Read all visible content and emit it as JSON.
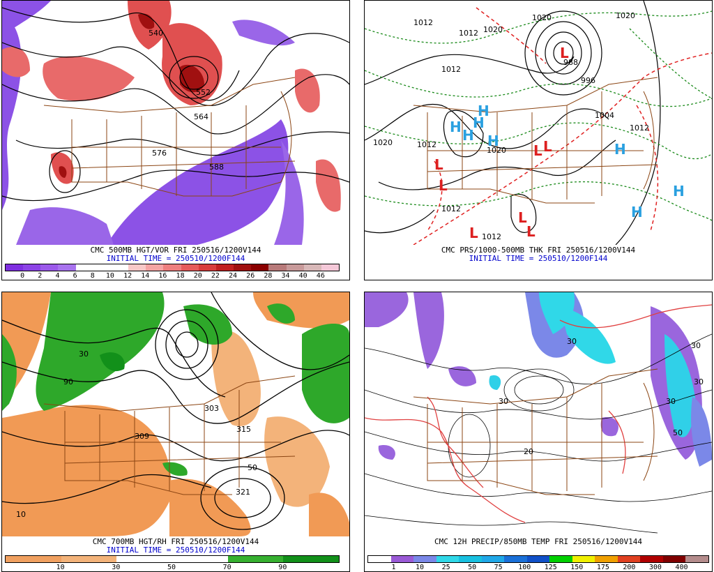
{
  "panels": {
    "p1": {
      "caption": "CMC 500MB HGT/VOR FRI 250516/1200V144",
      "init": "INITIAL TIME = 250510/1200F144",
      "legend_colors": [
        "#7f2fe0",
        "#8c43e6",
        "#9b59ea",
        "#a873ee",
        "#ffffff",
        "#ffffff",
        "#ffffff",
        "#f8c8c8",
        "#f4a4a4",
        "#ee7f7f",
        "#e65a5a",
        "#d83c3c",
        "#c02020",
        "#a01010",
        "#8a0000",
        "#b87a7a",
        "#c89a9a",
        "#d8b8b8",
        "#f4c8d8"
      ],
      "legend_labels": [
        "0",
        "2",
        "4",
        "6",
        "8",
        "10",
        "12",
        "14",
        "16",
        "18",
        "20",
        "22",
        "24",
        "26",
        "28",
        "34",
        "40",
        "46"
      ],
      "contour_labels": [
        "540",
        "552",
        "564",
        "576",
        "588"
      ]
    },
    "p2": {
      "caption": "CMC PRS/1000-500MB THK FRI 250516/1200V144",
      "init": "INITIAL TIME = 250510/1200F144",
      "contour_labels": [
        "1012",
        "1020",
        "1012",
        "1020",
        "1012",
        "1020",
        "988",
        "996",
        "1004",
        "1012",
        "1020",
        "1012",
        "1012",
        "1012",
        "1020"
      ],
      "highs": [
        "H",
        "H",
        "H",
        "H",
        "H",
        "H",
        "H",
        "H"
      ],
      "lows": [
        "L",
        "L",
        "L",
        "L",
        "L",
        "L",
        "L",
        "L"
      ]
    },
    "p3": {
      "caption": "CMC 700MB HGT/RH FRI 250516/1200V144",
      "init": "INITIAL TIME = 250510/1200F144",
      "legend_colors": [
        "#f0a060",
        "#f3b37a",
        "#ffffff",
        "#ffffff",
        "#36b030",
        "#12901a"
      ],
      "legend_labels": [
        "10",
        "30",
        "50",
        "70",
        "90"
      ],
      "contour_labels": [
        "303",
        "309",
        "315",
        "321",
        "10",
        "30",
        "50",
        "90"
      ]
    },
    "p4": {
      "caption": "CMC 12H PRECIP/850MB TEMP FRI 250516/1200V144",
      "legend_colors": [
        "#ffffff",
        "#9a5ad6",
        "#7b88e8",
        "#30d8e8",
        "#18c0e0",
        "#20a8e8",
        "#1a70d8",
        "#1050c8",
        "#00d000",
        "#f0f000",
        "#f0a000",
        "#e04020",
        "#b00000",
        "#800000",
        "#b48c8c"
      ],
      "legend_labels": [
        "1",
        "10",
        "25",
        "50",
        "75",
        "100",
        "125",
        "150",
        "175",
        "200",
        "300",
        "400"
      ],
      "contour_labels": [
        "30",
        "30",
        "30",
        "50",
        "30",
        "30",
        "20"
      ]
    }
  },
  "colors": {
    "border": "#8b4513",
    "contour": "#000000",
    "thickness_red": "#e02020",
    "thickness_green": "#1a8a1a",
    "high": "#2aa0e0",
    "low": "#dd2020",
    "vort_purple": "#8c52e6",
    "vort_red": "#e05050",
    "rh_green": "#2ea82a",
    "rh_orange": "#f19a55",
    "precip_purple": "#9a66dd",
    "precip_cyan": "#30d0e8"
  }
}
